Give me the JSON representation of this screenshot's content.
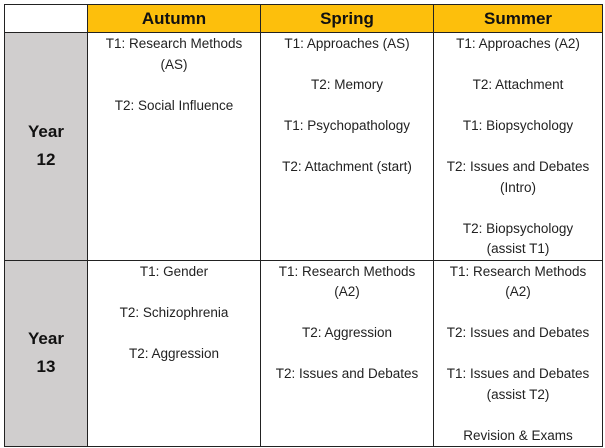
{
  "header": {
    "corner": "",
    "columns": [
      "Autumn",
      "Spring",
      "Summer"
    ]
  },
  "rows": [
    {
      "year": [
        "Year",
        "12"
      ],
      "cells": [
        [
          [
            "T1: Research Methods",
            "(AS)"
          ],
          [
            "T2: Social Influence"
          ]
        ],
        [
          [
            "T1: Approaches (AS)"
          ],
          [
            "T2: Memory"
          ],
          [
            "T1: Psychopathology"
          ],
          [
            "T2: Attachment (start)"
          ]
        ],
        [
          [
            "T1: Approaches (A2)"
          ],
          [
            "T2: Attachment"
          ],
          [
            "T1: Biopsychology"
          ],
          [
            "T2: Issues and Debates",
            "(Intro)"
          ],
          [
            "T2: Biopsychology",
            "(assist T1)"
          ]
        ]
      ]
    },
    {
      "year": [
        "Year",
        "13"
      ],
      "cells": [
        [
          [
            "T1: Gender"
          ],
          [
            "T2: Schizophrenia"
          ],
          [
            "T2: Aggression"
          ]
        ],
        [
          [
            "T1: Research Methods",
            "(A2)"
          ],
          [
            "T2: Aggression"
          ],
          [
            "T2: Issues and Debates"
          ]
        ],
        [
          [
            "T1: Research Methods",
            "(A2)"
          ],
          [
            "T2: Issues and Debates"
          ],
          [
            "T1: Issues and Debates",
            "(assist T2)"
          ],
          [
            "Revision & Exams"
          ]
        ]
      ]
    }
  ]
}
